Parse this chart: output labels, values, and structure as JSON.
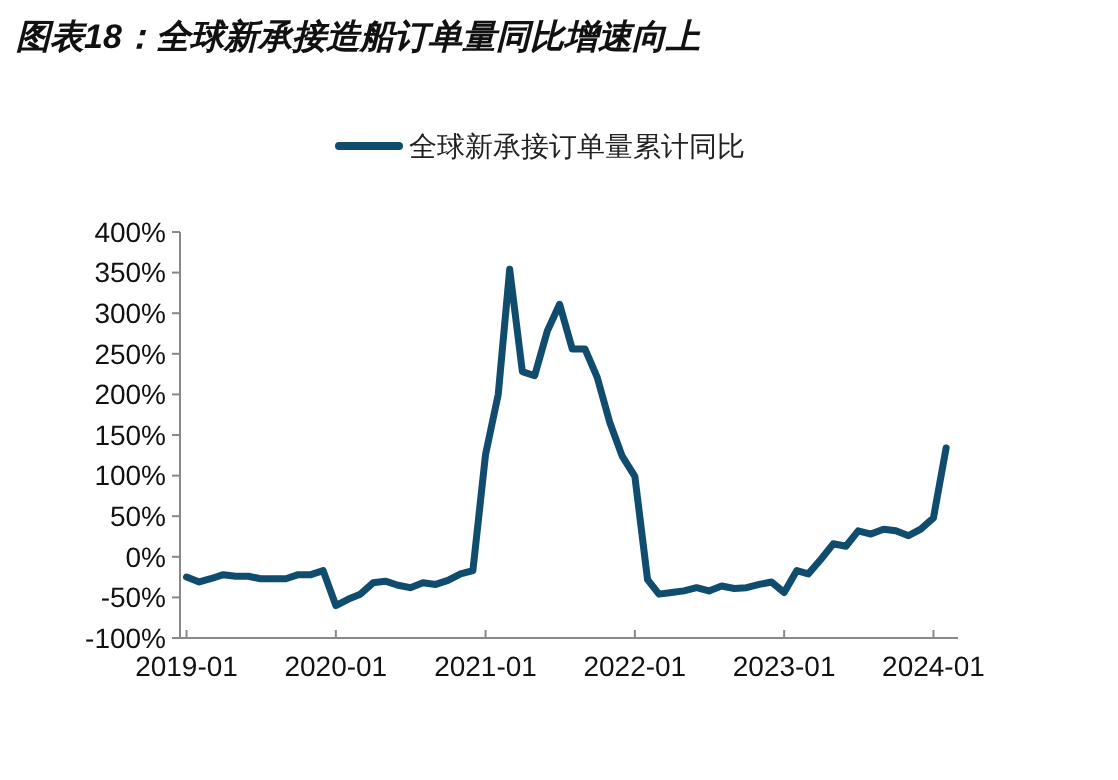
{
  "chart_data": {
    "type": "line",
    "title": "图表18：全球新承接造船订单量同比增速向上",
    "x": [
      "2019-01",
      "2019-02",
      "2019-03",
      "2019-04",
      "2019-05",
      "2019-06",
      "2019-07",
      "2019-08",
      "2019-09",
      "2019-10",
      "2019-11",
      "2019-12",
      "2020-01",
      "2020-02",
      "2020-03",
      "2020-04",
      "2020-05",
      "2020-06",
      "2020-07",
      "2020-08",
      "2020-09",
      "2020-10",
      "2020-11",
      "2020-12",
      "2021-01",
      "2021-02",
      "2021-03",
      "2021-04",
      "2021-05",
      "2021-06",
      "2021-07",
      "2021-08",
      "2021-09",
      "2021-10",
      "2021-11",
      "2021-12",
      "2022-01",
      "2022-02",
      "2022-03",
      "2022-04",
      "2022-05",
      "2022-06",
      "2022-07",
      "2022-08",
      "2022-09",
      "2022-10",
      "2022-11",
      "2022-12",
      "2023-01",
      "2023-02",
      "2023-03",
      "2023-04",
      "2023-05",
      "2023-06",
      "2023-07",
      "2023-08",
      "2023-09",
      "2023-10",
      "2023-11",
      "2023-12",
      "2024-01",
      "2024-02"
    ],
    "series": [
      {
        "name": "全球新承接订单量累计同比",
        "color": "#0f4c6e",
        "values": [
          -25,
          -31,
          -27,
          -22,
          -24,
          -24,
          -27,
          -27,
          -27,
          -22,
          -22,
          -17,
          -60,
          -52,
          -46,
          -32,
          -30,
          -35,
          -38,
          -32,
          -34,
          -29,
          -21,
          -17,
          126,
          200,
          354,
          228,
          223,
          278,
          311,
          256,
          256,
          221,
          165,
          124,
          99,
          -28,
          -46,
          -44,
          -42,
          -38,
          -42,
          -36,
          -39,
          -38,
          -34,
          -31,
          -44,
          -17,
          -21,
          -3,
          16,
          13,
          32,
          28,
          34,
          32,
          26,
          34,
          48,
          134
        ]
      }
    ],
    "xlim": [
      "2018-12-16",
      "2024-03"
    ],
    "xticks": [
      {
        "value": "2019-01",
        "label": "2019-01"
      },
      {
        "value": "2020-01",
        "label": "2020-01"
      },
      {
        "value": "2021-01",
        "label": "2021-01"
      },
      {
        "value": "2022-01",
        "label": "2022-01"
      },
      {
        "value": "2023-01",
        "label": "2023-01"
      },
      {
        "value": "2024-01",
        "label": "2024-01"
      }
    ],
    "ylim": [
      -100,
      400
    ],
    "yticks": [
      {
        "value": -100,
        "label": "-100%"
      },
      {
        "value": -50,
        "label": "-50%"
      },
      {
        "value": 0,
        "label": "0%"
      },
      {
        "value": 50,
        "label": "50%"
      },
      {
        "value": 100,
        "label": "100%"
      },
      {
        "value": 150,
        "label": "150%"
      },
      {
        "value": 200,
        "label": "200%"
      },
      {
        "value": 250,
        "label": "250%"
      },
      {
        "value": 300,
        "label": "300%"
      },
      {
        "value": 350,
        "label": "350%"
      },
      {
        "value": 400,
        "label": "400%"
      }
    ],
    "legend": "top",
    "grid": false,
    "marker": "none",
    "line_style": "solid"
  }
}
